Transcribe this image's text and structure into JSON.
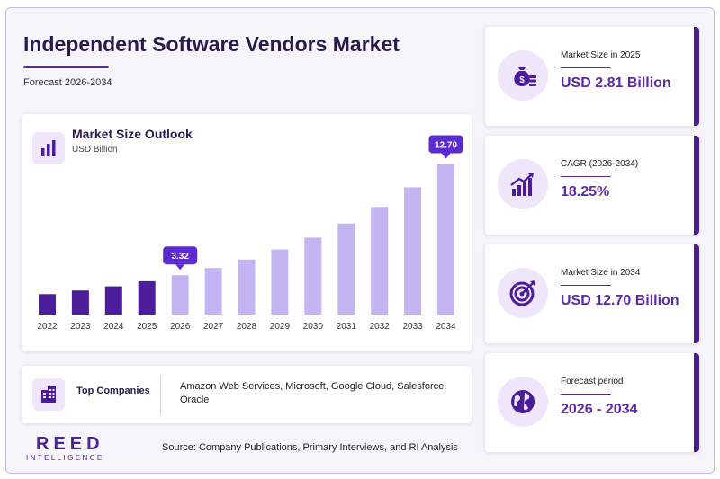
{
  "header": {
    "title": "Independent Software Vendors Market",
    "subtitle": "Forecast 2026-2034"
  },
  "chart_card": {
    "title": "Market Size Outlook",
    "unit": "USD Billion",
    "icon": "bar-chart-icon"
  },
  "chart_data": {
    "type": "bar",
    "title": "Market Size Outlook",
    "ylabel": "USD Billion",
    "categories": [
      "2022",
      "2023",
      "2024",
      "2025",
      "2026",
      "2027",
      "2028",
      "2029",
      "2030",
      "2031",
      "2032",
      "2033",
      "2034"
    ],
    "values": [
      1.72,
      2.03,
      2.38,
      2.81,
      3.32,
      3.93,
      4.64,
      5.49,
      6.49,
      7.68,
      9.08,
      10.74,
      12.7
    ],
    "callouts": [
      {
        "category": "2026",
        "label": "3.32"
      },
      {
        "category": "2034",
        "label": "12.70"
      }
    ],
    "ylim": [
      0,
      13.5
    ],
    "grid": false,
    "colors": {
      "historical": "#4b1d9a",
      "forecast": "#c4b5f2",
      "callout": "#5b2ad0"
    }
  },
  "companies": {
    "label": "Top Companies",
    "list": "Amazon Web Services, Microsoft, Google Cloud, Salesforce, Oracle",
    "icon": "building-icon"
  },
  "kpis": [
    {
      "label": "Market Size in 2025",
      "value": "USD 2.81 Billion",
      "icon": "money-bag-icon"
    },
    {
      "label": "CAGR (2026-2034)",
      "value": "18.25%",
      "icon": "growth-chart-icon"
    },
    {
      "label": "Market Size in 2034",
      "value": "USD 12.70 Billion",
      "icon": "target-icon"
    },
    {
      "label": "Forecast period",
      "value": "2026 - 2034",
      "icon": "globe-icon"
    }
  ],
  "footer": {
    "logo_main": "REED",
    "logo_sub": "INTELLIGENCE",
    "source": "Source: Company Publications, Primary Interviews, and RI Analysis"
  },
  "theme": {
    "accent": "#5b2aa6",
    "dark": "#2a1b4d"
  }
}
